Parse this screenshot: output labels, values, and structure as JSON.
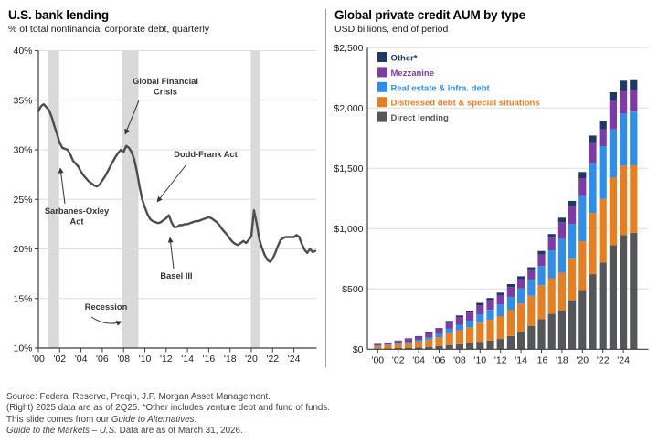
{
  "chart_data": [
    {
      "type": "line",
      "title": "U.S. bank lending",
      "subtitle": "% of total nonfinancial corporate debt, quarterly",
      "ylim": [
        10,
        40
      ],
      "yticks": [
        10,
        15,
        20,
        25,
        30,
        35,
        40
      ],
      "ytick_suffix": "%",
      "xlim": [
        2000,
        2026.3
      ],
      "xticks": [
        2000,
        2002,
        2004,
        2006,
        2008,
        2010,
        2012,
        2014,
        2016,
        2018,
        2020,
        2022,
        2024
      ],
      "xtick_labels": [
        "'00",
        "'02",
        "'04",
        "'06",
        "'08",
        "'10",
        "'12",
        "'14",
        "'16",
        "'18",
        "'20",
        "'22",
        "'24"
      ],
      "grid": true,
      "line_color": "#4d4d4d",
      "recession_color": "#d9d9d9",
      "recessions": [
        [
          2000.95,
          2001.95
        ],
        [
          2007.85,
          2009.4
        ],
        [
          2019.95,
          2020.8
        ]
      ],
      "points": [
        [
          2000.0,
          33.9
        ],
        [
          2000.25,
          34.4
        ],
        [
          2000.5,
          34.6
        ],
        [
          2000.75,
          34.3
        ],
        [
          2001.0,
          34.0
        ],
        [
          2001.25,
          33.3
        ],
        [
          2001.5,
          32.4
        ],
        [
          2001.75,
          31.6
        ],
        [
          2002.0,
          30.7
        ],
        [
          2002.25,
          30.2
        ],
        [
          2002.5,
          30.1
        ],
        [
          2002.75,
          30.0
        ],
        [
          2003.0,
          29.5
        ],
        [
          2003.25,
          28.9
        ],
        [
          2003.5,
          28.6
        ],
        [
          2003.75,
          28.3
        ],
        [
          2004.0,
          27.8
        ],
        [
          2004.25,
          27.4
        ],
        [
          2004.5,
          27.1
        ],
        [
          2004.75,
          26.8
        ],
        [
          2005.0,
          26.6
        ],
        [
          2005.25,
          26.4
        ],
        [
          2005.5,
          26.3
        ],
        [
          2005.75,
          26.5
        ],
        [
          2006.0,
          26.9
        ],
        [
          2006.25,
          27.3
        ],
        [
          2006.5,
          27.8
        ],
        [
          2006.75,
          28.3
        ],
        [
          2007.0,
          28.8
        ],
        [
          2007.25,
          29.3
        ],
        [
          2007.5,
          29.7
        ],
        [
          2007.75,
          30.0
        ],
        [
          2008.0,
          29.8
        ],
        [
          2008.25,
          30.4
        ],
        [
          2008.5,
          30.2
        ],
        [
          2008.75,
          29.8
        ],
        [
          2009.0,
          29.0
        ],
        [
          2009.25,
          27.8
        ],
        [
          2009.5,
          26.3
        ],
        [
          2009.75,
          25.0
        ],
        [
          2010.0,
          24.2
        ],
        [
          2010.25,
          23.5
        ],
        [
          2010.5,
          23.0
        ],
        [
          2010.75,
          22.8
        ],
        [
          2011.0,
          22.7
        ],
        [
          2011.25,
          22.6
        ],
        [
          2011.5,
          22.7
        ],
        [
          2011.75,
          22.9
        ],
        [
          2012.0,
          23.1
        ],
        [
          2012.25,
          23.4
        ],
        [
          2012.5,
          22.7
        ],
        [
          2012.75,
          22.2
        ],
        [
          2013.0,
          22.2
        ],
        [
          2013.25,
          22.4
        ],
        [
          2013.5,
          22.4
        ],
        [
          2013.75,
          22.5
        ],
        [
          2014.0,
          22.5
        ],
        [
          2014.25,
          22.6
        ],
        [
          2014.5,
          22.7
        ],
        [
          2014.75,
          22.8
        ],
        [
          2015.0,
          22.8
        ],
        [
          2015.25,
          22.9
        ],
        [
          2015.5,
          23.0
        ],
        [
          2015.75,
          23.1
        ],
        [
          2016.0,
          23.2
        ],
        [
          2016.25,
          23.1
        ],
        [
          2016.5,
          22.9
        ],
        [
          2016.75,
          22.7
        ],
        [
          2017.0,
          22.4
        ],
        [
          2017.25,
          22.0
        ],
        [
          2017.5,
          21.7
        ],
        [
          2017.75,
          21.4
        ],
        [
          2018.0,
          21.0
        ],
        [
          2018.25,
          20.7
        ],
        [
          2018.5,
          20.5
        ],
        [
          2018.75,
          20.4
        ],
        [
          2019.0,
          20.6
        ],
        [
          2019.25,
          20.8
        ],
        [
          2019.5,
          20.6
        ],
        [
          2019.75,
          20.9
        ],
        [
          2020.0,
          21.3
        ],
        [
          2020.25,
          23.9
        ],
        [
          2020.5,
          22.6
        ],
        [
          2020.75,
          21.0
        ],
        [
          2021.0,
          20.1
        ],
        [
          2021.25,
          19.4
        ],
        [
          2021.5,
          18.9
        ],
        [
          2021.75,
          18.7
        ],
        [
          2022.0,
          19.0
        ],
        [
          2022.25,
          19.6
        ],
        [
          2022.5,
          20.3
        ],
        [
          2022.75,
          20.9
        ],
        [
          2023.0,
          21.1
        ],
        [
          2023.25,
          21.2
        ],
        [
          2023.5,
          21.2
        ],
        [
          2023.75,
          21.2
        ],
        [
          2024.0,
          21.2
        ],
        [
          2024.25,
          21.4
        ],
        [
          2024.5,
          21.2
        ],
        [
          2024.75,
          20.5
        ],
        [
          2025.0,
          19.9
        ],
        [
          2025.25,
          19.6
        ],
        [
          2025.5,
          20.0
        ],
        [
          2025.75,
          19.7
        ],
        [
          2026.0,
          19.8
        ]
      ],
      "annotations": [
        {
          "name": "global-financial-crisis",
          "lines": [
            "Global Financial",
            "Crisis"
          ],
          "tx": 181,
          "ty": 92,
          "arrow": [
            152,
            110,
            137,
            147
          ]
        },
        {
          "name": "dodd-frank-act",
          "lines": [
            "Dodd-Frank Act"
          ],
          "tx": 225,
          "ty": 172,
          "arrow": [
            204,
            180,
            172,
            221
          ]
        },
        {
          "name": "sarbanes-oxley-act",
          "lines": [
            "Sarbanes-Oxley",
            "Act"
          ],
          "tx": 84,
          "ty": 234,
          "arrow": [
            71,
            223,
            66,
            184
          ]
        },
        {
          "name": "basel-iii",
          "lines": [
            "Basel III"
          ],
          "tx": 193,
          "ty": 305,
          "arrow": [
            190,
            294,
            186,
            260
          ]
        },
        {
          "name": "recession",
          "lines": [
            "Recession"
          ],
          "tx": 116,
          "ty": 339,
          "arrow": [
            100,
            347,
            133,
            352
          ],
          "curve": true
        }
      ]
    },
    {
      "type": "bar",
      "stacked": true,
      "title": "Global private credit AUM by type",
      "subtitle": "USD billions, end of period",
      "ylim": [
        0,
        2500
      ],
      "yticks": [
        0,
        500,
        1000,
        1500,
        2000,
        2500
      ],
      "ytick_labels": [
        "$0",
        "$500",
        "$1,000",
        "$1,500",
        "$2,000",
        "$2,500"
      ],
      "years": [
        2000,
        2001,
        2002,
        2003,
        2004,
        2005,
        2006,
        2007,
        2008,
        2009,
        2010,
        2011,
        2012,
        2013,
        2014,
        2015,
        2016,
        2017,
        2018,
        2019,
        2020,
        2021,
        2022,
        2023,
        2024,
        2025
      ],
      "xtick_labels": [
        "'00",
        "'02",
        "'04",
        "'06",
        "'08",
        "'10",
        "'12",
        "'14",
        "'16",
        "'18",
        "'20",
        "'22",
        "'24"
      ],
      "grid": true,
      "legend_position": "top-left",
      "series": [
        {
          "name": "Direct lending",
          "color": "#55565a",
          "values": [
            7,
            8,
            10,
            12,
            15,
            20,
            26,
            35,
            42,
            50,
            62,
            72,
            85,
            110,
            144,
            194,
            250,
            295,
            320,
            404,
            485,
            623,
            720,
            863,
            947,
            965
          ]
        },
        {
          "name": "Distressed debt & special situations",
          "color": "#e67e22",
          "values": [
            20,
            25,
            32,
            40,
            48,
            60,
            74,
            98,
            115,
            132,
            158,
            172,
            190,
            215,
            235,
            250,
            280,
            295,
            316,
            346,
            411,
            506,
            527,
            561,
            573,
            560
          ]
        },
        {
          "name": "Real estate & infra. debt",
          "color": "#2e8ee8",
          "values": [
            5,
            6,
            8,
            11,
            14,
            19,
            25,
            37,
            46,
            55,
            70,
            82,
            95,
            110,
            125,
            135,
            160,
            230,
            283,
            290,
            376,
            416,
            437,
            399,
            435,
            445
          ]
        },
        {
          "name": "Mezzanine",
          "color": "#7d3ca5",
          "values": [
            11,
            14,
            18,
            22,
            26,
            33,
            41,
            53,
            62,
            67,
            76,
            79,
            79,
            82,
            77,
            75,
            95,
            105,
            134,
            146,
            147,
            164,
            139,
            240,
            184,
            182
          ]
        },
        {
          "name": "Other*",
          "color": "#1f3864",
          "values": [
            2,
            3,
            4,
            5,
            6,
            7,
            9,
            12,
            15,
            16,
            19,
            20,
            21,
            23,
            24,
            26,
            30,
            30,
            38,
            44,
            51,
            63,
            71,
            68,
            88,
            80
          ]
        }
      ]
    }
  ],
  "footer": {
    "lines": [
      {
        "segments": [
          {
            "text": "Source: Federal Reserve, Preqin, J.P. Morgan Asset Management."
          }
        ]
      },
      {
        "segments": [
          {
            "text": "(Right) 2025 data are as of 2Q25. *Other includes venture debt and fund of funds."
          }
        ]
      },
      {
        "segments": [
          {
            "text": "This slide comes from our "
          },
          {
            "text": "Guide to Alternatives",
            "italic": true
          },
          {
            "text": "."
          }
        ]
      },
      {
        "segments": [
          {
            "text": "Guide to the Markets – U.S.",
            "italic": true
          },
          {
            "text": " Data are as of March 31, 2026."
          }
        ]
      }
    ]
  }
}
